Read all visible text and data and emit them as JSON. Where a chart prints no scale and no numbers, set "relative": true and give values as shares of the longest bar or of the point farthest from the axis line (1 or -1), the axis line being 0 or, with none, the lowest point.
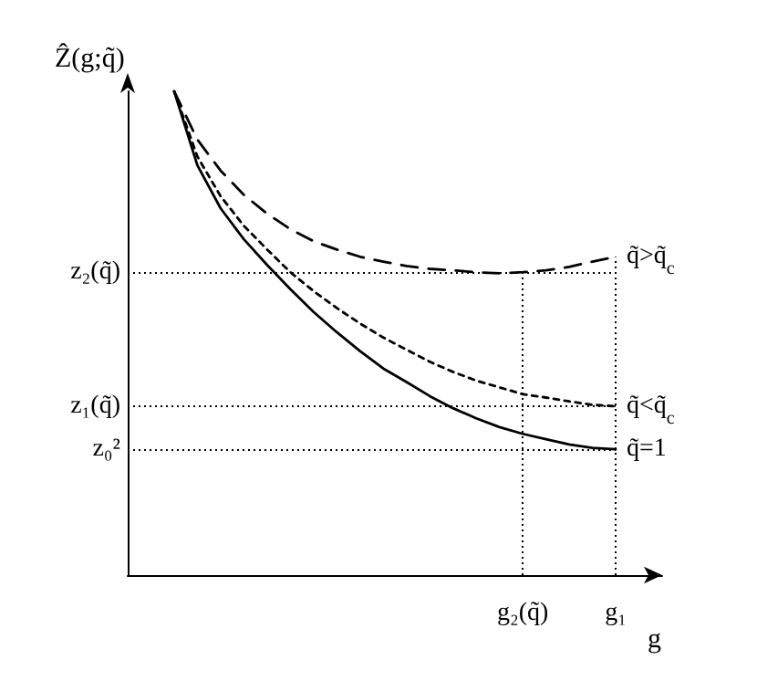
{
  "chart_data": {
    "type": "line",
    "relative": true,
    "xlabel": "g",
    "ylabel": "Ẑ(g;q̃)",
    "marker": "none",
    "categories": [
      null,
      null,
      null,
      null,
      null,
      null,
      null,
      null,
      null,
      null,
      null,
      null,
      null,
      null,
      null,
      null,
      null,
      "g₂(q̃)",
      null,
      null,
      null,
      "g₁",
      null,
      null
    ],
    "series": [
      {
        "name": "q̃>q̃$_{c}$",
        "color": "#000000",
        "line_style": "dashed",
        "values": [
          null,
          null,
          1.0,
          0.9,
          0.836,
          0.786,
          0.747,
          0.715,
          0.69,
          0.673,
          0.658,
          0.648,
          0.639,
          0.633,
          0.63,
          0.626,
          0.624,
          0.626,
          0.63,
          0.637,
          0.648,
          0.658,
          null,
          null
        ]
      },
      {
        "name": "q̃<q̃$_{c}$",
        "color": "#000000",
        "line_style": "dotted",
        "values": [
          null,
          null,
          1.0,
          0.865,
          0.783,
          0.722,
          0.673,
          0.626,
          0.587,
          0.552,
          0.52,
          0.491,
          0.466,
          0.441,
          0.42,
          0.402,
          0.388,
          0.374,
          0.367,
          0.359,
          0.352,
          0.349,
          null,
          null
        ]
      },
      {
        "name": "q̃=1",
        "color": "#000000",
        "line_style": "solid",
        "values": [
          null,
          null,
          1.0,
          0.847,
          0.758,
          0.694,
          0.641,
          0.591,
          0.544,
          0.502,
          0.463,
          0.427,
          0.399,
          0.37,
          0.345,
          0.324,
          0.306,
          0.292,
          0.281,
          0.27,
          0.263,
          0.26,
          null,
          null
        ]
      }
    ],
    "ref_lines": [
      {
        "axis": "y",
        "value": 0.626,
        "label": "z₂(q̃)",
        "line_style": "dotted",
        "color": "#000000"
      },
      {
        "axis": "y",
        "value": 0.349,
        "label": "z₁(q̃)",
        "line_style": "dotted",
        "color": "#000000"
      },
      {
        "axis": "y",
        "value": 0.26,
        "label": "z₀²",
        "line_style": "dotted",
        "color": "#000000"
      },
      {
        "axis": "x",
        "value": "g₂(q̃)",
        "label": null,
        "line_style": "dotted",
        "color": "#000000"
      },
      {
        "axis": "x",
        "value": "g₁",
        "label": null,
        "line_style": "dotted",
        "color": "#000000"
      }
    ]
  }
}
